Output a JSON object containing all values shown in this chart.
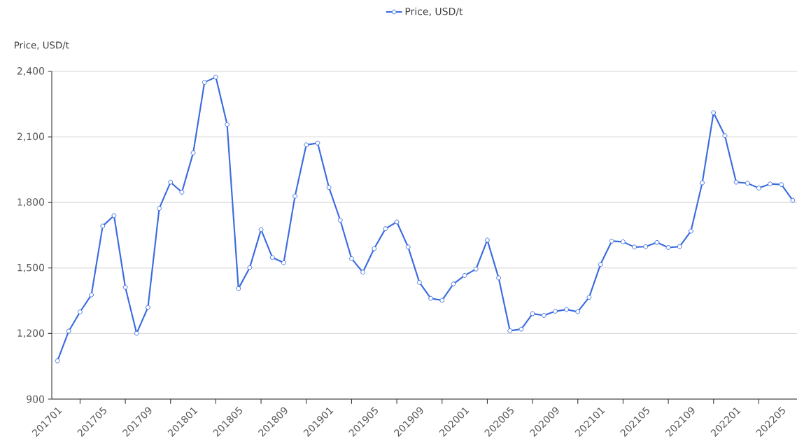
{
  "chart_data": {
    "type": "line",
    "ylabel": "Price, USD/t",
    "categories": [
      "201701",
      null,
      null,
      null,
      "201705",
      null,
      null,
      null,
      "201709",
      null,
      null,
      null,
      "201801",
      null,
      null,
      null,
      "201805",
      null,
      null,
      null,
      "201809",
      null,
      null,
      null,
      "201901",
      null,
      null,
      null,
      "201905",
      null,
      null,
      null,
      "201909",
      null,
      null,
      null,
      "202001",
      null,
      null,
      null,
      "202005",
      null,
      null,
      null,
      "202009",
      null,
      null,
      null,
      "202101",
      null,
      null,
      null,
      "202105",
      null,
      null,
      null,
      "202109",
      null,
      null,
      null,
      "202201",
      null,
      null,
      null,
      "202205",
      null
    ],
    "series": [
      {
        "name": "Price, USD/t",
        "color": "#3a6be0",
        "values": [
          1075,
          1211,
          1299,
          1377,
          1692,
          1740,
          1412,
          1201,
          1320,
          1773,
          1893,
          1847,
          2027,
          2350,
          2374,
          2157,
          1406,
          1502,
          1676,
          1548,
          1524,
          1829,
          2064,
          2072,
          1869,
          1719,
          1543,
          1481,
          1589,
          1680,
          1711,
          1596,
          1434,
          1361,
          1352,
          1427,
          1466,
          1495,
          1628,
          1455,
          1213,
          1220,
          1291,
          1283,
          1302,
          1310,
          1300,
          1366,
          1516,
          1623,
          1620,
          1596,
          1598,
          1617,
          1594,
          1598,
          1669,
          1890,
          2211,
          2106,
          1893,
          1888,
          1866,
          1885,
          1882,
          1810
        ]
      }
    ],
    "ylim": [
      900,
      2400
    ],
    "yticks": [
      900,
      {
        "value": 1200,
        "label": "1,200"
      },
      {
        "value": 1500,
        "label": "1,500"
      },
      {
        "value": 1800,
        "label": "1,800"
      },
      {
        "value": 2100,
        "label": "2,100"
      },
      {
        "value": 2400,
        "label": "2,400"
      }
    ],
    "grid": "y",
    "legend": "top",
    "marker": "circle",
    "line_style": "solid"
  }
}
